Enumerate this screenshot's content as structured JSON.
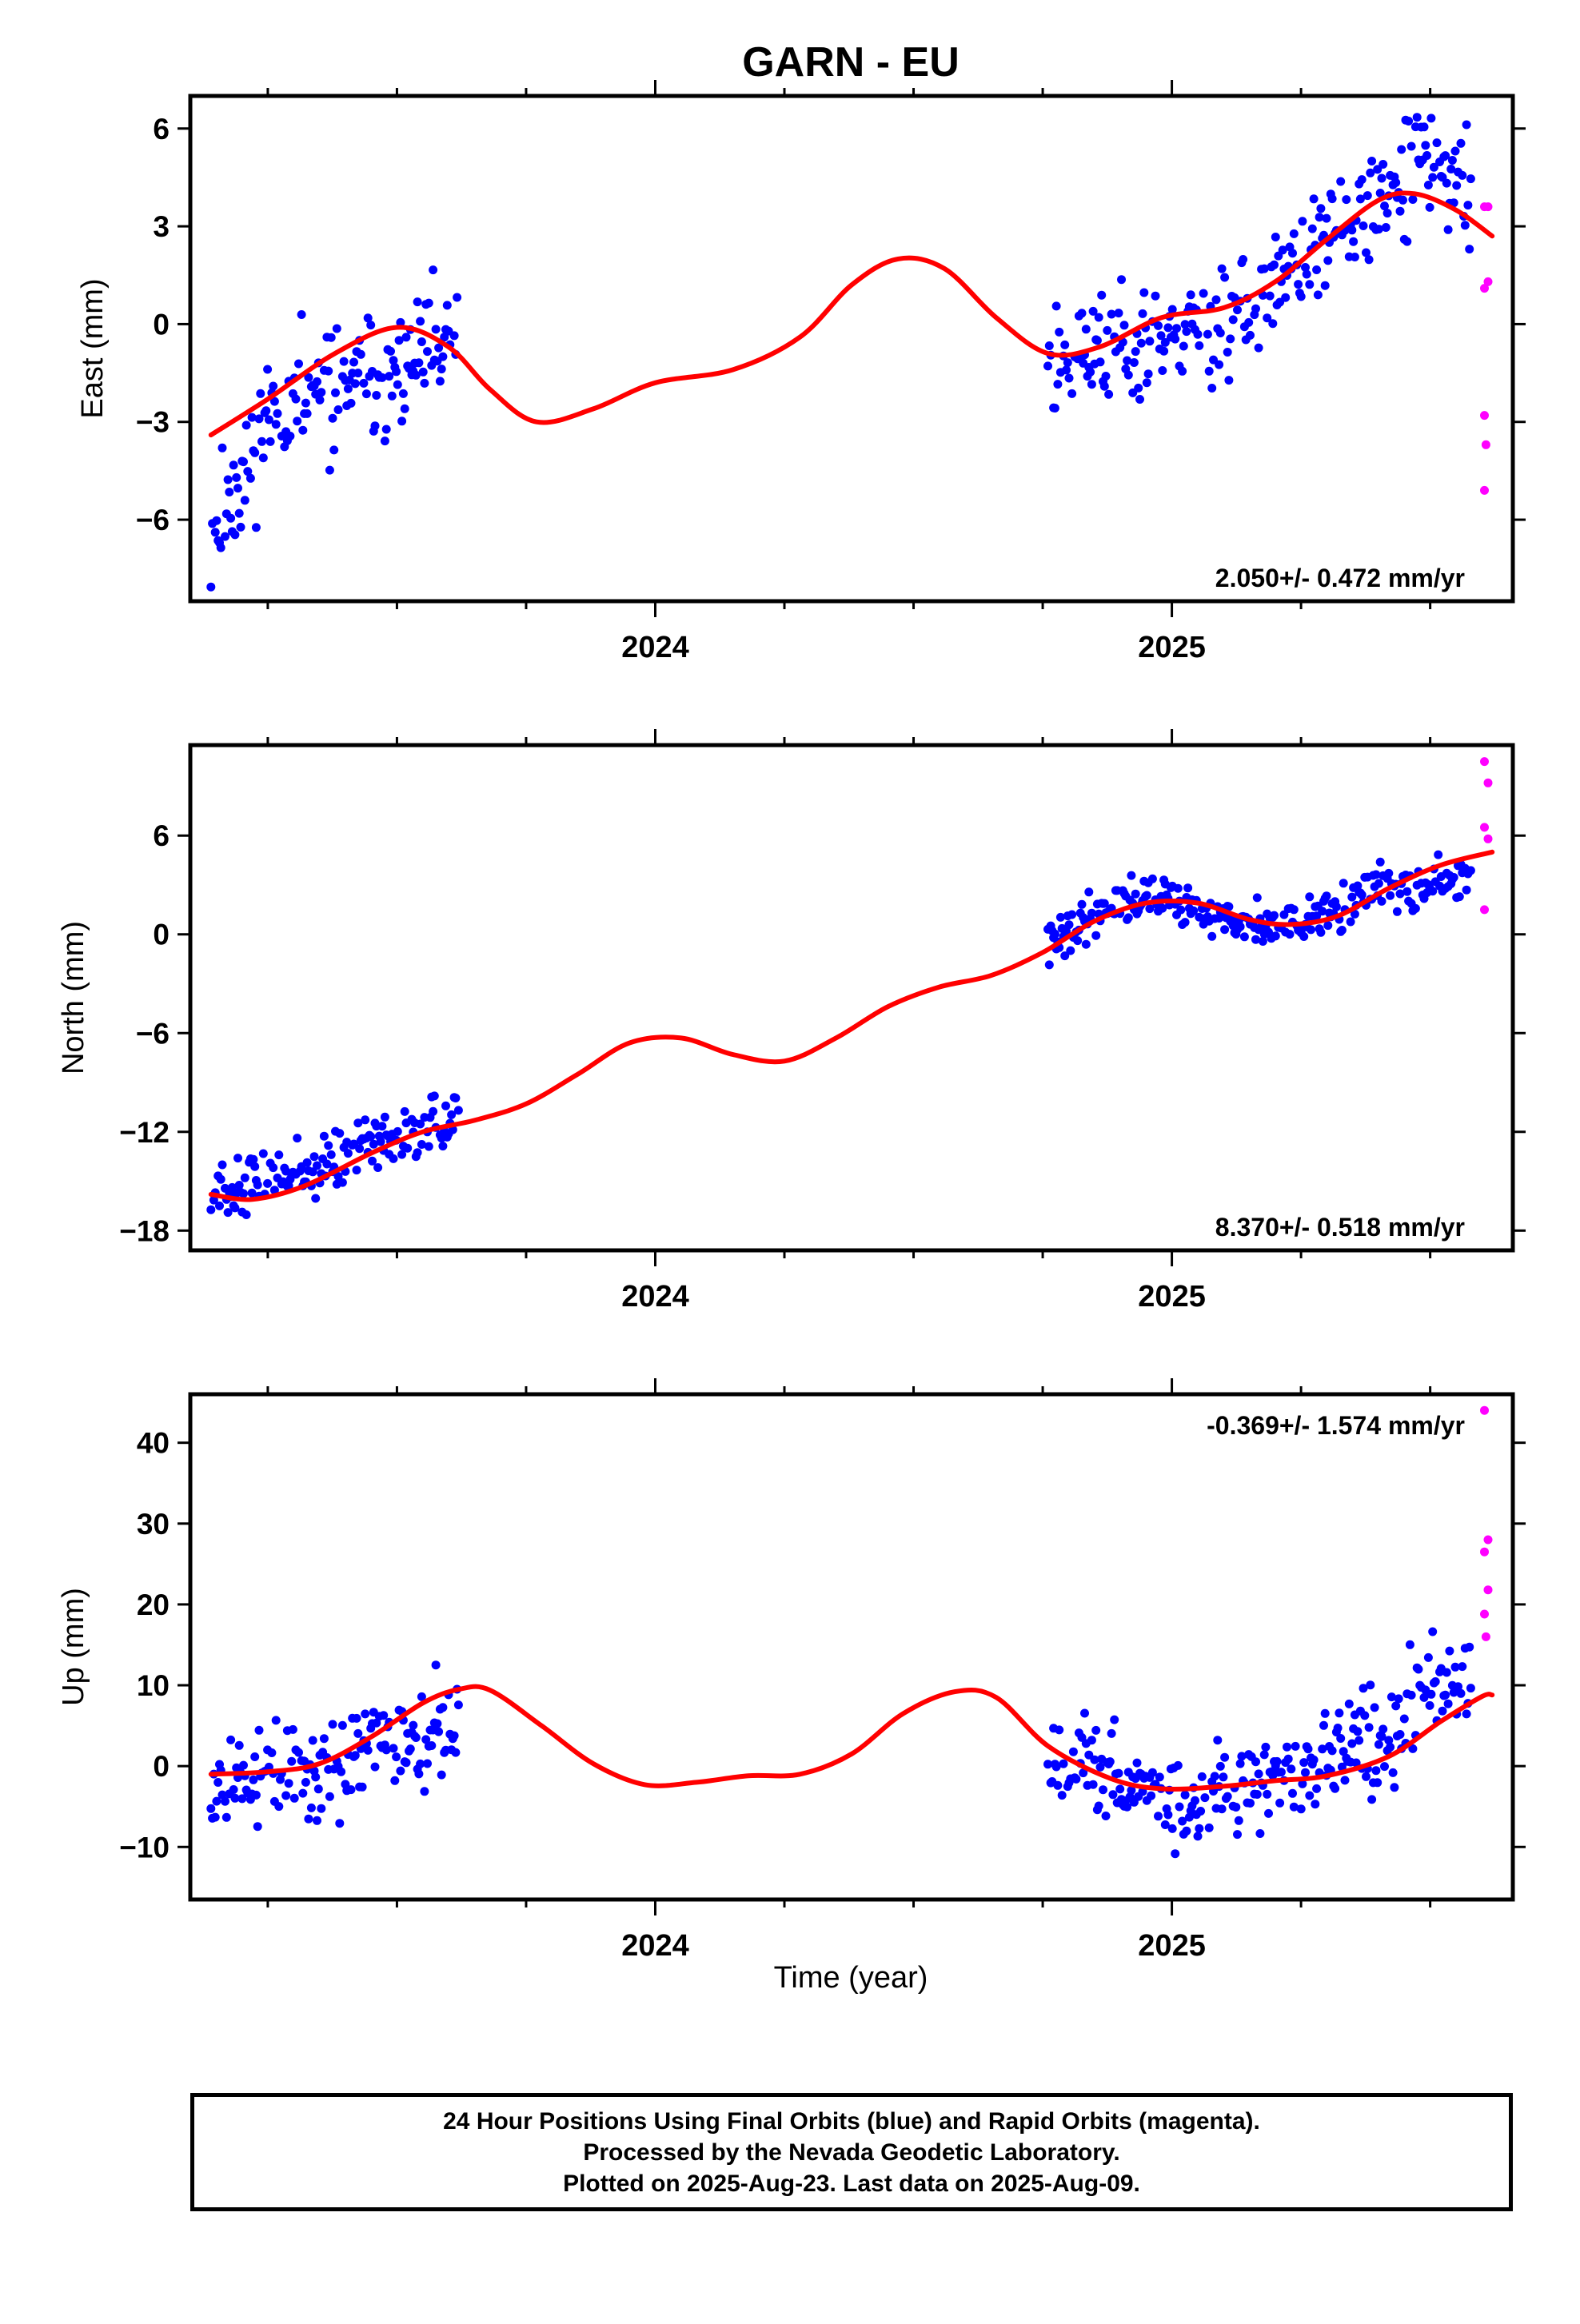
{
  "title": "GARN - EU",
  "xlabel": "Time (year)",
  "footer": {
    "line1": "24 Hour Positions Using Final Orbits (blue) and Rapid Orbits (magenta).",
    "line2": "Processed by the Nevada Geodetic Laboratory.",
    "line3": "Plotted on 2025-Aug-23. Last data on 2025-Aug-09."
  },
  "colors": {
    "final": "#0000ff",
    "rapid": "#ff00ff",
    "model": "#ff0000",
    "axis": "#000000"
  },
  "chart_data": [
    {
      "type": "scatter",
      "component": "east",
      "ylabel": "East (mm)",
      "rate_label": "2.050+/- 0.472 mm/yr",
      "rate_position": "bottom-right",
      "xlim": [
        2023.1,
        2025.66
      ],
      "ylim": [
        -8.5,
        7.0
      ],
      "yticks": [
        6,
        3,
        0,
        -3,
        -6
      ],
      "yticklabels": [
        "6",
        "3",
        "0",
        "−3",
        "−6"
      ],
      "xticks": [
        2024,
        2025
      ],
      "xticklabels": [
        "2024",
        "2025"
      ],
      "xminor": [
        2023.25,
        2023.5,
        2023.75,
        2024.25,
        2024.5,
        2024.75,
        2025.25,
        2025.5
      ],
      "grid": false,
      "final_segments": [
        {
          "start": 2023.14,
          "end": 2023.62,
          "seed": 11,
          "scatter": 1.4,
          "trend": [
            [
              2023.14,
              -6.5
            ],
            [
              2023.25,
              -2.8
            ],
            [
              2023.35,
              -2.2
            ],
            [
              2023.5,
              -1.5
            ],
            [
              2023.62,
              -0.6
            ]
          ]
        },
        {
          "start": 2024.76,
          "end": 2025.58,
          "seed": 23,
          "scatter": 1.3,
          "trend": [
            [
              2024.76,
              -1.2
            ],
            [
              2025.0,
              -0.2
            ],
            [
              2025.15,
              0.3
            ],
            [
              2025.3,
              2.7
            ],
            [
              2025.42,
              3.8
            ],
            [
              2025.5,
              5.0
            ],
            [
              2025.58,
              4.0
            ]
          ]
        }
      ],
      "rapid_points": [
        [
          2025.605,
          3.6
        ],
        [
          2025.612,
          3.6
        ],
        [
          2025.605,
          1.1
        ],
        [
          2025.612,
          1.3
        ],
        [
          2025.605,
          -2.8
        ],
        [
          2025.608,
          -3.7
        ],
        [
          2025.605,
          -5.1
        ]
      ],
      "model_curve": [
        [
          2023.14,
          -3.4
        ],
        [
          2023.25,
          -2.3
        ],
        [
          2023.38,
          -0.9
        ],
        [
          2023.5,
          -0.1
        ],
        [
          2023.6,
          -0.7
        ],
        [
          2023.68,
          -2.0
        ],
        [
          2023.77,
          -3.0
        ],
        [
          2023.88,
          -2.6
        ],
        [
          2024.0,
          -1.8
        ],
        [
          2024.15,
          -1.4
        ],
        [
          2024.28,
          -0.4
        ],
        [
          2024.38,
          1.2
        ],
        [
          2024.47,
          2.0
        ],
        [
          2024.56,
          1.7
        ],
        [
          2024.66,
          0.2
        ],
        [
          2024.76,
          -0.9
        ],
        [
          2024.86,
          -0.7
        ],
        [
          2024.98,
          0.2
        ],
        [
          2025.1,
          0.5
        ],
        [
          2025.2,
          1.3
        ],
        [
          2025.3,
          2.6
        ],
        [
          2025.4,
          3.8
        ],
        [
          2025.47,
          4.0
        ],
        [
          2025.55,
          3.5
        ],
        [
          2025.62,
          2.7
        ]
      ]
    },
    {
      "type": "scatter",
      "component": "north",
      "ylabel": "North (mm)",
      "rate_label": "8.370+/- 0.518 mm/yr",
      "rate_position": "bottom-right",
      "xlim": [
        2023.1,
        2025.66
      ],
      "ylim": [
        -19.2,
        11.5
      ],
      "yticks": [
        6,
        0,
        -6,
        -12,
        -18
      ],
      "yticklabels": [
        "6",
        "0",
        "−6",
        "−12",
        "−18"
      ],
      "xticks": [
        2024,
        2025
      ],
      "xticklabels": [
        "2024",
        "2025"
      ],
      "xminor": [
        2023.25,
        2023.5,
        2023.75,
        2024.25,
        2024.5,
        2024.75,
        2025.25,
        2025.5
      ],
      "grid": false,
      "final_segments": [
        {
          "start": 2023.14,
          "end": 2023.62,
          "seed": 37,
          "scatter": 1.2,
          "trend": [
            [
              2023.14,
              -15.6
            ],
            [
              2023.3,
              -14.8
            ],
            [
              2023.45,
              -12.8
            ],
            [
              2023.62,
              -11.0
            ]
          ]
        },
        {
          "start": 2024.76,
          "end": 2025.58,
          "seed": 41,
          "scatter": 1.0,
          "trend": [
            [
              2024.76,
              -0.5
            ],
            [
              2024.9,
              2.2
            ],
            [
              2025.0,
              2.3
            ],
            [
              2025.12,
              0.6
            ],
            [
              2025.25,
              0.4
            ],
            [
              2025.4,
              2.8
            ],
            [
              2025.58,
              3.2
            ]
          ]
        }
      ],
      "rapid_points": [
        [
          2025.605,
          10.5
        ],
        [
          2025.612,
          9.2
        ],
        [
          2025.605,
          6.5
        ],
        [
          2025.612,
          5.8
        ],
        [
          2025.605,
          1.5
        ]
      ],
      "model_curve": [
        [
          2023.14,
          -15.8
        ],
        [
          2023.22,
          -16.1
        ],
        [
          2023.32,
          -15.3
        ],
        [
          2023.45,
          -13.3
        ],
        [
          2023.55,
          -12.0
        ],
        [
          2023.65,
          -11.3
        ],
        [
          2023.75,
          -10.3
        ],
        [
          2023.85,
          -8.5
        ],
        [
          2023.95,
          -6.6
        ],
        [
          2024.05,
          -6.3
        ],
        [
          2024.15,
          -7.3
        ],
        [
          2024.25,
          -7.7
        ],
        [
          2024.35,
          -6.3
        ],
        [
          2024.45,
          -4.4
        ],
        [
          2024.55,
          -3.2
        ],
        [
          2024.65,
          -2.5
        ],
        [
          2024.75,
          -1.1
        ],
        [
          2024.85,
          0.8
        ],
        [
          2024.95,
          1.9
        ],
        [
          2025.05,
          1.9
        ],
        [
          2025.15,
          0.9
        ],
        [
          2025.23,
          0.6
        ],
        [
          2025.32,
          1.1
        ],
        [
          2025.42,
          2.8
        ],
        [
          2025.52,
          4.2
        ],
        [
          2025.62,
          5.0
        ]
      ]
    },
    {
      "type": "scatter",
      "component": "up",
      "ylabel": "Up (mm)",
      "rate_label": "-0.369+/- 1.574 mm/yr",
      "rate_position": "top-right",
      "xlim": [
        2023.1,
        2025.66
      ],
      "ylim": [
        -16.5,
        46.0
      ],
      "yticks": [
        40,
        30,
        20,
        10,
        0,
        -10
      ],
      "yticklabels": [
        "40",
        "30",
        "20",
        "10",
        "0",
        "−10"
      ],
      "xticks": [
        2024,
        2025
      ],
      "xticklabels": [
        "2024",
        "2025"
      ],
      "xminor": [
        2023.25,
        2023.5,
        2023.75,
        2024.25,
        2024.5,
        2024.75,
        2025.25,
        2025.5
      ],
      "grid": false,
      "final_segments": [
        {
          "start": 2023.14,
          "end": 2023.62,
          "seed": 53,
          "scatter": 4.5,
          "trend": [
            [
              2023.14,
              -1.0
            ],
            [
              2023.3,
              -1.2
            ],
            [
              2023.45,
              1.5
            ],
            [
              2023.62,
              6.0
            ]
          ]
        },
        {
          "start": 2024.76,
          "end": 2025.58,
          "seed": 67,
          "scatter": 4.2,
          "trend": [
            [
              2024.76,
              2.0
            ],
            [
              2024.9,
              -2.5
            ],
            [
              2025.0,
              -4.5
            ],
            [
              2025.15,
              -1.5
            ],
            [
              2025.3,
              -0.5
            ],
            [
              2025.42,
              5.0
            ],
            [
              2025.52,
              11.0
            ],
            [
              2025.58,
              12.0
            ]
          ]
        }
      ],
      "rapid_points": [
        [
          2025.605,
          44.0
        ],
        [
          2025.612,
          28.0
        ],
        [
          2025.605,
          26.5
        ],
        [
          2025.612,
          21.8
        ],
        [
          2025.605,
          18.8
        ],
        [
          2025.608,
          16.0
        ]
      ],
      "model_curve": [
        [
          2023.14,
          -1.0
        ],
        [
          2023.25,
          -0.7
        ],
        [
          2023.35,
          0.3
        ],
        [
          2023.45,
          3.6
        ],
        [
          2023.55,
          7.8
        ],
        [
          2023.62,
          9.5
        ],
        [
          2023.68,
          9.4
        ],
        [
          2023.78,
          5.0
        ],
        [
          2023.88,
          0.3
        ],
        [
          2023.98,
          -2.3
        ],
        [
          2024.08,
          -2.0
        ],
        [
          2024.18,
          -1.2
        ],
        [
          2024.28,
          -1.0
        ],
        [
          2024.38,
          1.5
        ],
        [
          2024.48,
          6.5
        ],
        [
          2024.58,
          9.2
        ],
        [
          2024.66,
          8.5
        ],
        [
          2024.76,
          2.5
        ],
        [
          2024.88,
          -1.5
        ],
        [
          2024.98,
          -2.8
        ],
        [
          2025.1,
          -2.5
        ],
        [
          2025.2,
          -1.8
        ],
        [
          2025.3,
          -1.2
        ],
        [
          2025.42,
          1.2
        ],
        [
          2025.52,
          5.5
        ],
        [
          2025.6,
          8.6
        ],
        [
          2025.62,
          8.8
        ]
      ]
    }
  ]
}
